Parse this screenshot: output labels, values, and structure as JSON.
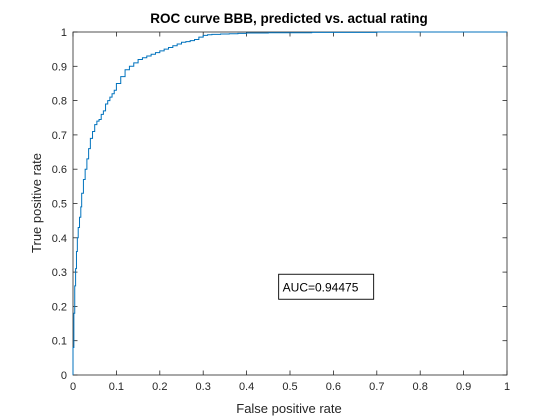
{
  "chart_data": {
    "type": "line",
    "title": "ROC curve BBB, predicted vs. actual rating",
    "xlabel": "False positive rate",
    "ylabel": "True positive rate",
    "xlim": [
      0,
      1
    ],
    "ylim": [
      0,
      1
    ],
    "xticks": [
      "0",
      "0.1",
      "0.2",
      "0.3",
      "0.4",
      "0.5",
      "0.6",
      "0.7",
      "0.8",
      "0.9",
      "1"
    ],
    "yticks": [
      "0",
      "0.1",
      "0.2",
      "0.3",
      "0.4",
      "0.5",
      "0.6",
      "0.7",
      "0.8",
      "0.9",
      "1"
    ],
    "grid": false,
    "line_color": "#0072BD",
    "annotation": {
      "text": "AUC=0.94475",
      "x": 0.49,
      "y": 0.25
    },
    "series": [
      {
        "x": [
          0,
          0.002,
          0.004,
          0.006,
          0.008,
          0.01,
          0.012,
          0.015,
          0.018,
          0.02,
          0.024,
          0.028,
          0.032,
          0.036,
          0.04,
          0.045,
          0.05,
          0.055,
          0.06,
          0.065,
          0.07,
          0.075,
          0.08,
          0.085,
          0.09,
          0.095,
          0.1,
          0.11,
          0.12,
          0.13,
          0.14,
          0.15,
          0.16,
          0.17,
          0.18,
          0.19,
          0.2,
          0.21,
          0.22,
          0.23,
          0.24,
          0.25,
          0.26,
          0.27,
          0.28,
          0.29,
          0.3,
          0.31,
          0.32,
          0.34,
          0.36,
          0.38,
          0.4,
          0.45,
          0.5,
          0.55,
          0.6,
          0.65,
          0.7,
          0.8,
          0.9,
          1.0
        ],
        "y": [
          0,
          0.08,
          0.18,
          0.26,
          0.31,
          0.36,
          0.4,
          0.43,
          0.46,
          0.49,
          0.53,
          0.57,
          0.6,
          0.63,
          0.66,
          0.69,
          0.71,
          0.73,
          0.74,
          0.745,
          0.76,
          0.77,
          0.79,
          0.8,
          0.81,
          0.82,
          0.83,
          0.85,
          0.87,
          0.89,
          0.9,
          0.91,
          0.92,
          0.925,
          0.93,
          0.935,
          0.94,
          0.945,
          0.95,
          0.955,
          0.96,
          0.965,
          0.97,
          0.972,
          0.975,
          0.978,
          0.985,
          0.99,
          0.992,
          0.993,
          0.994,
          0.995,
          0.996,
          0.997,
          0.998,
          0.998,
          0.999,
          0.999,
          0.999,
          1.0,
          1.0,
          1.0
        ]
      }
    ]
  }
}
